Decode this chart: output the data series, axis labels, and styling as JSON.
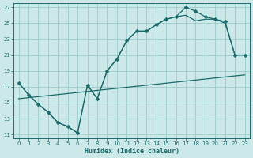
{
  "xlabel": "Humidex (Indice chaleur)",
  "background_color": "#cce8e8",
  "grid_color": "#99cccc",
  "line_color": "#1a6b6b",
  "xlim": [
    -0.5,
    23.5
  ],
  "ylim": [
    10.5,
    27.5
  ],
  "xticks": [
    0,
    1,
    2,
    3,
    4,
    5,
    6,
    7,
    8,
    9,
    10,
    11,
    12,
    13,
    14,
    15,
    16,
    17,
    18,
    19,
    20,
    21,
    22,
    23
  ],
  "yticks": [
    11,
    13,
    15,
    17,
    19,
    21,
    23,
    25,
    27
  ],
  "line1_x": [
    0,
    1,
    2,
    3,
    4,
    5,
    6,
    7,
    8,
    9,
    10,
    11,
    12,
    13,
    14,
    15,
    16,
    17,
    18,
    19,
    20,
    21,
    22,
    23
  ],
  "line1_y": [
    17.5,
    16.0,
    14.8,
    13.8,
    12.5,
    12.0,
    11.2,
    17.2,
    15.5,
    19.0,
    20.5,
    22.8,
    24.0,
    24.0,
    24.8,
    25.5,
    25.8,
    27.0,
    26.5,
    25.8,
    25.5,
    25.2,
    21.0,
    21.0
  ],
  "line2_x": [
    0,
    1,
    2,
    3,
    4,
    5,
    6,
    7,
    8,
    9,
    10,
    11,
    12,
    13,
    14,
    15,
    16,
    17,
    18,
    19,
    20,
    21,
    22,
    23
  ],
  "line2_y": [
    17.5,
    16.0,
    14.8,
    13.8,
    12.5,
    12.0,
    11.2,
    17.2,
    15.5,
    19.0,
    20.5,
    22.8,
    24.0,
    24.0,
    24.8,
    25.5,
    25.8,
    26.0,
    25.3,
    25.5,
    25.5,
    25.0,
    21.0,
    21.0
  ],
  "line3_x": [
    0,
    23
  ],
  "line3_y": [
    15.5,
    18.5
  ],
  "marker_size": 2.5,
  "linewidth": 0.9
}
